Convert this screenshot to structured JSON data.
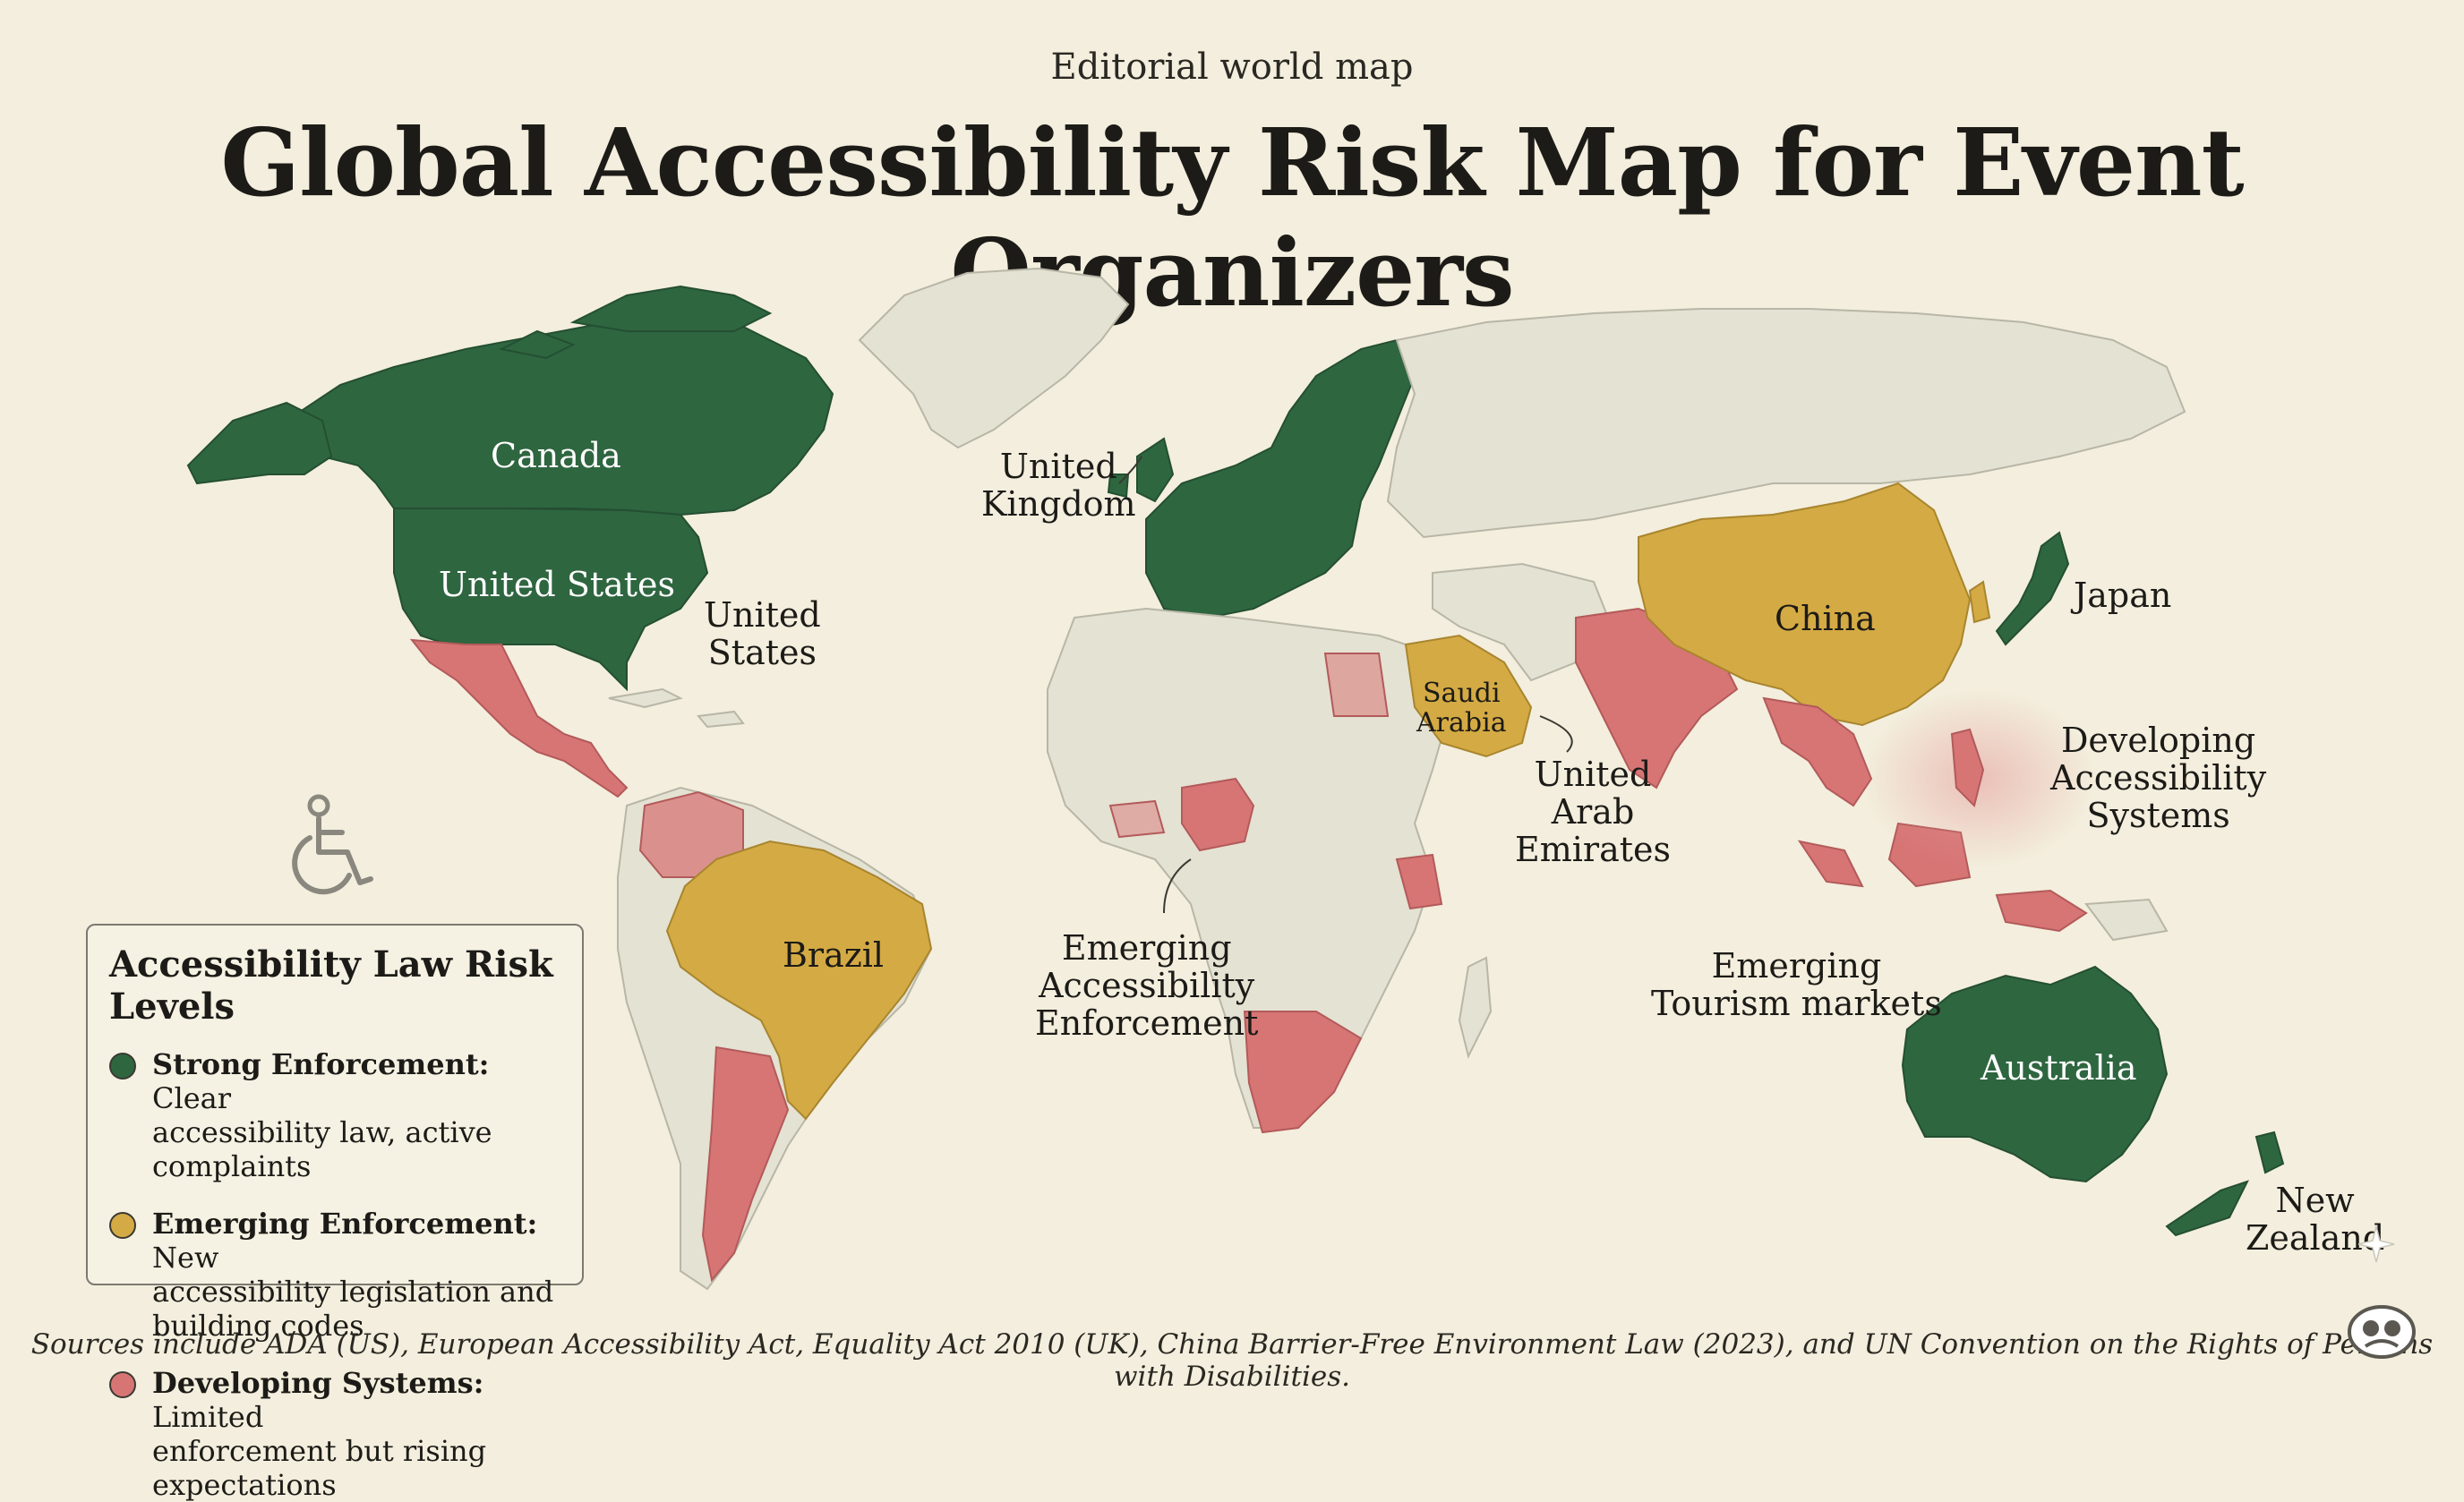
{
  "header": {
    "kicker": "Editorial world map",
    "title": "Global Accessibility Risk Map for Event Organizers"
  },
  "colors": {
    "background": "#f3eedd",
    "strong": "#2e6640",
    "emerging": "#d4aa44",
    "developing": "#d77575",
    "neutral": "#e4e2d2"
  },
  "labels": {
    "canada": "Canada",
    "united_states": "United States",
    "united_states_callout": [
      "United",
      "States"
    ],
    "united_kingdom": [
      "United",
      "Kingdom"
    ],
    "brazil": "Brazil",
    "china": "China",
    "japan": "Japan",
    "saudi_arabia": [
      "Saudi",
      "Arabia"
    ],
    "uae": [
      "United",
      "Arab",
      "Emirates"
    ],
    "developing_accessibility": [
      "Developing",
      "Accessibility",
      "Systems"
    ],
    "emerging_tourism": [
      "Emerging",
      "Tourism markets"
    ],
    "emerging_enforcement": [
      "Emerging",
      "Accessibility",
      "Enforcement"
    ],
    "australia": "Australia",
    "new_zealand": [
      "New",
      "Zealand"
    ]
  },
  "legend": {
    "title": "Accessibility Law Risk Levels",
    "items": [
      {
        "level": "Strong Enforcement:",
        "line1": "Clear",
        "line2": "accessibility law, active complaints",
        "color": "#2e6640"
      },
      {
        "level": "Emerging Enforcement:",
        "line1": "New",
        "line2": "accessibility legislation and building codes",
        "color": "#d4aa44"
      },
      {
        "level": "Developing Systems:",
        "line1": "Limited",
        "line2": "enforcement but rising expectations",
        "color": "#d77575"
      }
    ]
  },
  "icons": {
    "wheelchair": "wheelchair-icon",
    "logo": "publisher-logo-icon",
    "sparkle": "sparkle-icon"
  },
  "sources": "Sources include ADA (US), European Accessibility Act, Equality Act 2010 (UK), China Barrier-Free Environment Law (2023), and UN Convention on the Rights of Persons with Disabilities."
}
